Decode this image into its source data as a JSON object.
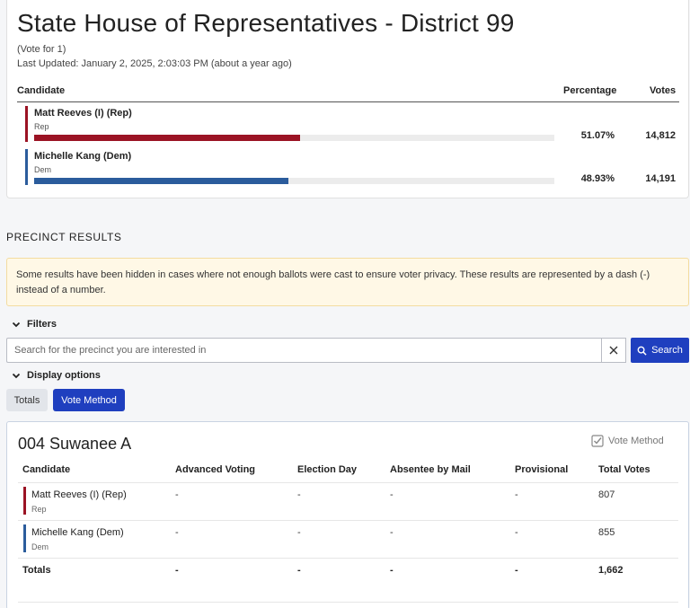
{
  "race": {
    "title": "State House of Representatives - District 99",
    "vote_for": "(Vote for 1)",
    "last_updated": "Last Updated: January 2, 2025, 2:03:03 PM (about a year ago)"
  },
  "summary_table": {
    "headers": {
      "candidate": "Candidate",
      "percentage": "Percentage",
      "votes": "Votes"
    },
    "candidates": [
      {
        "name": "Matt Reeves (I) (Rep)",
        "party": "Rep",
        "percentage": "51.07%",
        "votes": "14,812",
        "share": 0.5107,
        "color": "#9b1324"
      },
      {
        "name": "Michelle Kang (Dem)",
        "party": "Dem",
        "percentage": "48.93%",
        "votes": "14,191",
        "share": 0.4893,
        "color": "#2b5c9c"
      }
    ]
  },
  "precinct_section": {
    "heading": "PRECINCT RESULTS",
    "notice": "Some results have been hidden in cases where not enough ballots were cast to ensure voter privacy. These results are represented by a dash (-) instead of a number.",
    "filters_label": "Filters",
    "search": {
      "placeholder": "Search for the precinct you are interested in",
      "button_label": "Search"
    },
    "display_options_label": "Display options",
    "tabs": {
      "totals": "Totals",
      "vote_method": "Vote Method"
    }
  },
  "precinct": {
    "name": "004 Suwanee A",
    "vote_method_label": "Vote Method",
    "headers": {
      "candidate": "Candidate",
      "advanced": "Advanced Voting",
      "election_day": "Election Day",
      "absentee": "Absentee by Mail",
      "provisional": "Provisional",
      "total": "Total Votes"
    },
    "rows": [
      {
        "name": "Matt Reeves (I) (Rep)",
        "party": "Rep",
        "advanced": "-",
        "election_day": "-",
        "absentee": "-",
        "provisional": "-",
        "total": "807",
        "color": "#9b1324"
      },
      {
        "name": "Michelle Kang (Dem)",
        "party": "Dem",
        "advanced": "-",
        "election_day": "-",
        "absentee": "-",
        "provisional": "-",
        "total": "855",
        "color": "#2b5c9c"
      }
    ],
    "totals": {
      "label": "Totals",
      "advanced": "-",
      "election_day": "-",
      "absentee": "-",
      "provisional": "-",
      "total": "1,662"
    }
  },
  "colors": {
    "accent": "#1f3fbf",
    "rep": "#9b1324",
    "dem": "#2b5c9c"
  },
  "icons": {
    "chevron": "chevron-down-icon",
    "clear": "close-icon",
    "search": "search-icon",
    "check": "checkbox-checked-icon"
  }
}
